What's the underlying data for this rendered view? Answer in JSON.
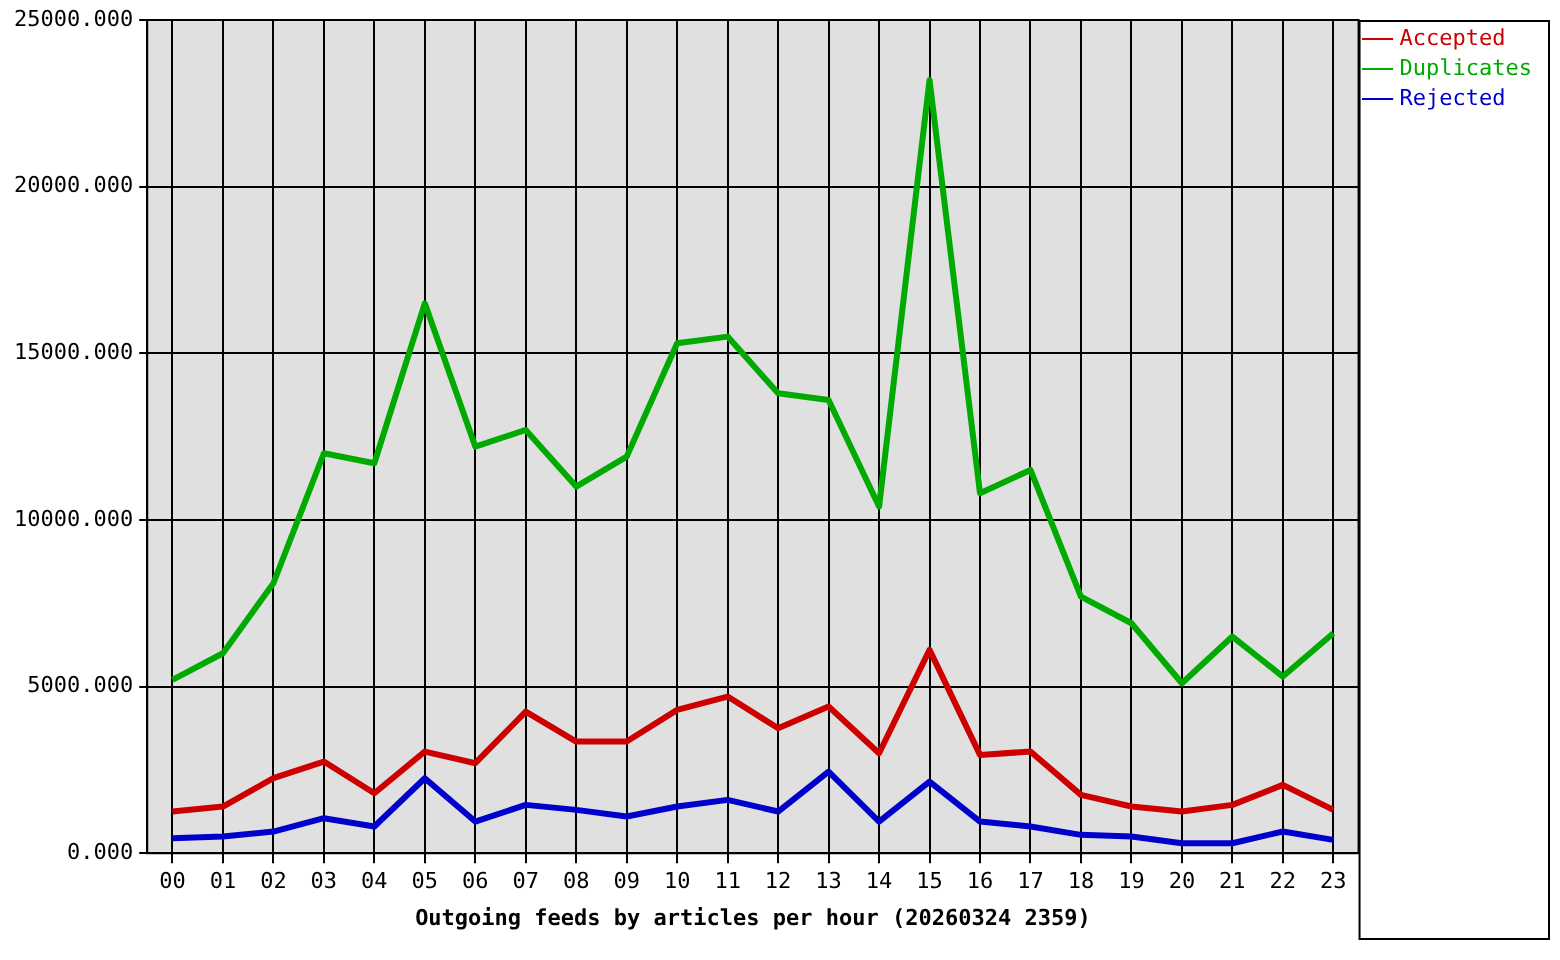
{
  "chart_data": {
    "type": "line",
    "xlabel": "Outgoing feeds by articles per hour (20260324 2359)",
    "categories": [
      "00",
      "01",
      "02",
      "03",
      "04",
      "05",
      "06",
      "07",
      "08",
      "09",
      "10",
      "11",
      "12",
      "13",
      "14",
      "15",
      "16",
      "17",
      "18",
      "19",
      "20",
      "21",
      "22",
      "23"
    ],
    "series": [
      {
        "name": "Accepted",
        "color": "#cc0000",
        "values": [
          1250,
          1400,
          2250,
          2750,
          1800,
          3050,
          2700,
          4250,
          3350,
          3350,
          4300,
          4700,
          3750,
          4400,
          3000,
          6100,
          2950,
          3050,
          1750,
          1400,
          1250,
          1450,
          2050,
          1300
        ]
      },
      {
        "name": "Duplicates",
        "color": "#00aa00",
        "values": [
          5200,
          6000,
          8100,
          12000,
          11700,
          16500,
          12200,
          12700,
          11000,
          11900,
          15300,
          15500,
          13800,
          13600,
          10400,
          23200,
          10800,
          11500,
          7700,
          6900,
          5100,
          6500,
          5300,
          6600
        ]
      },
      {
        "name": "Rejected",
        "color": "#0000cc",
        "values": [
          450,
          500,
          650,
          1050,
          800,
          2250,
          950,
          1450,
          1300,
          1100,
          1400,
          1600,
          1250,
          2450,
          950,
          2150,
          950,
          800,
          550,
          500,
          300,
          300,
          650,
          400
        ]
      }
    ],
    "ylim": [
      0,
      25000
    ],
    "yticks": [
      {
        "value": 0,
        "label": "0.000"
      },
      {
        "value": 5000,
        "label": "5000.000"
      },
      {
        "value": 10000,
        "label": "10000.000"
      },
      {
        "value": 15000,
        "label": "15000.000"
      },
      {
        "value": 20000,
        "label": "20000.000"
      },
      {
        "value": 25000,
        "label": "25000.000"
      }
    ],
    "grid": true,
    "legend": "top right",
    "marker": "none",
    "line_style": "solid"
  }
}
